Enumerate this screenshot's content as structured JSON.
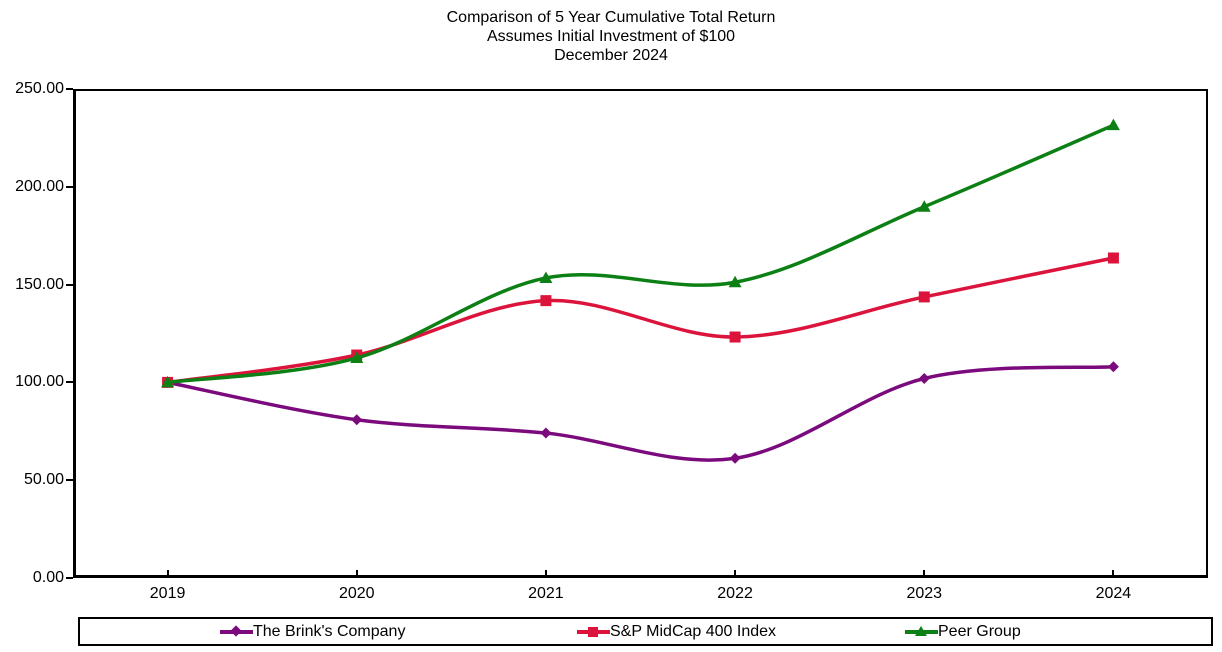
{
  "title": {
    "line1": "Comparison of 5 Year Cumulative Total Return",
    "line2": "Assumes Initial Investment of $100",
    "line3": "December 2024"
  },
  "chart_data": {
    "type": "line",
    "smooth": true,
    "grid": false,
    "x": [
      "2019",
      "2020",
      "2021",
      "2022",
      "2023",
      "2024"
    ],
    "series": [
      {
        "name": "The Brink's Company",
        "marker": "diamond",
        "color": "#7B0A7D",
        "values": [
          100.0,
          80.9,
          74.1,
          61.2,
          102.0,
          108.0
        ]
      },
      {
        "name": "S&P MidCap 400 Index",
        "marker": "square",
        "color": "#DC143C",
        "values": [
          100.0,
          114.0,
          141.8,
          123.2,
          143.7,
          163.6
        ]
      },
      {
        "name": "Peer Group",
        "marker": "triangle",
        "color": "#0C8014",
        "values": [
          100.0,
          112.5,
          153.4,
          151.2,
          189.8,
          231.5
        ]
      }
    ],
    "ylabel": "",
    "xlabel": "",
    "ylim": [
      0,
      250
    ],
    "yticks": [
      0,
      50,
      100,
      150,
      200,
      250
    ],
    "ytick_labels": [
      "0.00",
      "50.00",
      "100.00",
      "150.00",
      "200.00",
      "250.00"
    ],
    "legend_position": "bottom-box"
  }
}
